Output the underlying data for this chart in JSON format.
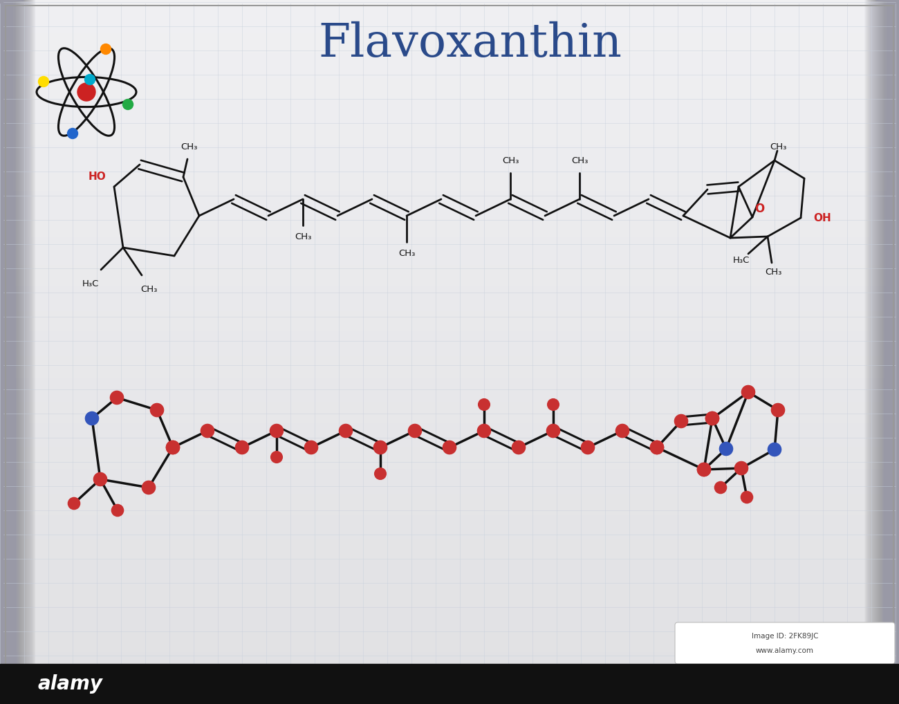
{
  "title": "Flavoxanthin",
  "title_color": "#2a4a8a",
  "title_fontsize": 48,
  "grid_color": "#c8d0dc",
  "bond_color": "#111111",
  "oxygen_color": "#cc2222",
  "text_color": "#111111",
  "carbon_ball_color": "#c83030",
  "oxygen_ball_color": "#3355bb",
  "watermark_text": "2FK89JC",
  "watermark_url": "www.alamy.com",
  "alamy_text": "alamy"
}
